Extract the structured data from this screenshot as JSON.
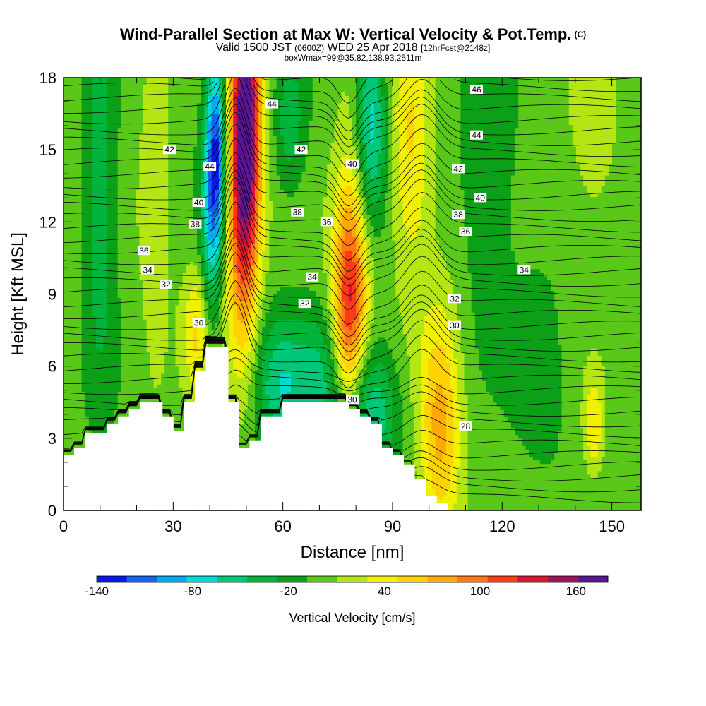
{
  "title": {
    "main": "Wind-Parallel Section at Max W: Vertical Velocity & Pot.Temp.",
    "copyright": "(C)",
    "valid_prefix": "Valid 1500 JST",
    "valid_z": "(0600Z)",
    "valid_date": "WED 25 Apr 2018",
    "forecast": "[12hrFcst@2148z]",
    "box": "boxWmax=99@35.82,138.93,2511m"
  },
  "chart_data": {
    "type": "heatmap",
    "title": "Wind-Parallel Section at Max W: Vertical Velocity & Pot.Temp.",
    "xlabel": "Distance [nm]",
    "ylabel": "Height [Kft MSL]",
    "xlim": [
      0,
      158
    ],
    "ylim": [
      0,
      18
    ],
    "x_ticks": [
      0,
      30,
      60,
      90,
      120,
      150
    ],
    "y_ticks": [
      0,
      3,
      6,
      9,
      12,
      15,
      18
    ],
    "colorbar": {
      "title": "Vertical Velocity [cm/s]",
      "ticks": [
        -140,
        -80,
        -20,
        40,
        100,
        160
      ],
      "levels": [
        -140,
        -120,
        -100,
        -80,
        -60,
        -40,
        -20,
        0,
        20,
        40,
        60,
        80,
        100,
        120,
        140,
        160,
        180
      ],
      "colors": [
        "#0a14f0",
        "#0f64f0",
        "#00aaf0",
        "#00dcd2",
        "#00c878",
        "#00b43c",
        "#0ca018",
        "#5ac818",
        "#b4e614",
        "#f0f000",
        "#ffd200",
        "#ffaa00",
        "#ff7814",
        "#ff3c14",
        "#dc1432",
        "#a0145a",
        "#5a1496"
      ]
    },
    "terrain": [
      [
        0,
        2.3
      ],
      [
        3,
        2.3
      ],
      [
        3,
        2.6
      ],
      [
        6,
        2.6
      ],
      [
        6,
        3.2
      ],
      [
        12,
        3.2
      ],
      [
        12,
        3.6
      ],
      [
        15,
        3.6
      ],
      [
        15,
        3.9
      ],
      [
        18,
        3.9
      ],
      [
        18,
        4.2
      ],
      [
        21,
        4.2
      ],
      [
        21,
        4.5
      ],
      [
        27,
        4.5
      ],
      [
        27,
        3.9
      ],
      [
        30,
        3.9
      ],
      [
        30,
        3.3
      ],
      [
        33,
        3.3
      ],
      [
        33,
        4.5
      ],
      [
        36,
        4.5
      ],
      [
        36,
        5.8
      ],
      [
        39,
        5.8
      ],
      [
        39,
        6.8
      ],
      [
        45,
        6.8
      ],
      [
        45,
        4.5
      ],
      [
        48,
        4.5
      ],
      [
        48,
        2.6
      ],
      [
        51,
        2.6
      ],
      [
        51,
        2.9
      ],
      [
        54,
        2.9
      ],
      [
        54,
        3.9
      ],
      [
        60,
        3.9
      ],
      [
        60,
        4.5
      ],
      [
        78,
        4.5
      ],
      [
        78,
        4.2
      ],
      [
        81,
        4.2
      ],
      [
        81,
        3.9
      ],
      [
        84,
        3.9
      ],
      [
        84,
        3.6
      ],
      [
        87,
        3.6
      ],
      [
        87,
        2.6
      ],
      [
        90,
        2.6
      ],
      [
        90,
        2.3
      ],
      [
        93,
        2.3
      ],
      [
        93,
        1.9
      ],
      [
        96,
        1.9
      ],
      [
        96,
        1.3
      ],
      [
        99,
        1.3
      ],
      [
        99,
        0.6
      ],
      [
        102,
        0.6
      ],
      [
        102,
        0.3
      ],
      [
        105,
        0.3
      ],
      [
        105,
        0.0
      ],
      [
        158,
        0.0
      ]
    ],
    "w_centers": [
      {
        "x": 50,
        "y": 16,
        "sx": 3,
        "sy": 5,
        "v": 170
      },
      {
        "x": 48,
        "y": 13,
        "sx": 3,
        "sy": 5,
        "v": 60
      },
      {
        "x": 42,
        "y": 15,
        "sx": 2,
        "sy": 3,
        "v": -120
      },
      {
        "x": 40,
        "y": 11,
        "sx": 2,
        "sy": 4,
        "v": -60
      },
      {
        "x": 78,
        "y": 8.5,
        "sx": 3,
        "sy": 3,
        "v": 110
      },
      {
        "x": 80,
        "y": 12,
        "sx": 4,
        "sy": 5,
        "v": 40
      },
      {
        "x": 84,
        "y": 16,
        "sx": 3,
        "sy": 3,
        "v": -90
      },
      {
        "x": 84,
        "y": 4.2,
        "sx": 5,
        "sy": 2,
        "v": -70
      },
      {
        "x": 70,
        "y": 5.2,
        "sx": 5,
        "sy": 2,
        "v": -50
      },
      {
        "x": 59,
        "y": 5.2,
        "sx": 5,
        "sy": 2,
        "v": -60
      },
      {
        "x": 103,
        "y": 3.6,
        "sx": 4,
        "sy": 3.5,
        "v": 80
      },
      {
        "x": 95,
        "y": 15,
        "sx": 4,
        "sy": 4,
        "v": 55
      },
      {
        "x": 25,
        "y": 13,
        "sx": 3,
        "sy": 6,
        "v": 30
      },
      {
        "x": 37,
        "y": 7.5,
        "sx": 3,
        "sy": 2,
        "v": 60
      },
      {
        "x": 10,
        "y": 13,
        "sx": 3,
        "sy": 6,
        "v": -40
      },
      {
        "x": 62,
        "y": 16,
        "sx": 3,
        "sy": 2,
        "v": -40
      },
      {
        "x": 116,
        "y": 14,
        "sx": 5,
        "sy": 4,
        "v": -30
      },
      {
        "x": 145,
        "y": 15,
        "sx": 6,
        "sy": 4,
        "v": 20
      },
      {
        "x": 145,
        "y": 3.5,
        "sx": 2,
        "sy": 1.5,
        "v": 50
      },
      {
        "x": 130,
        "y": 6,
        "sx": 6,
        "sy": 3,
        "v": -20
      }
    ],
    "theta_labels": [
      {
        "x": 23,
        "y": 10.0,
        "label": "34"
      },
      {
        "x": 22,
        "y": 10.8,
        "label": "36"
      },
      {
        "x": 28,
        "y": 9.4,
        "label": "32"
      },
      {
        "x": 37,
        "y": 7.8,
        "label": "30"
      },
      {
        "x": 36,
        "y": 11.9,
        "label": "38"
      },
      {
        "x": 37,
        "y": 12.8,
        "label": "40"
      },
      {
        "x": 29,
        "y": 15.0,
        "label": "42"
      },
      {
        "x": 40,
        "y": 14.3,
        "label": "44"
      },
      {
        "x": 57,
        "y": 16.9,
        "label": "44"
      },
      {
        "x": 65,
        "y": 15.0,
        "label": "42"
      },
      {
        "x": 64,
        "y": 12.4,
        "label": "38"
      },
      {
        "x": 68,
        "y": 9.7,
        "label": "34"
      },
      {
        "x": 66,
        "y": 8.6,
        "label": "32"
      },
      {
        "x": 72,
        "y": 12.0,
        "label": "36"
      },
      {
        "x": 79,
        "y": 14.4,
        "label": "40"
      },
      {
        "x": 79,
        "y": 4.6,
        "label": "30"
      },
      {
        "x": 108,
        "y": 14.2,
        "label": "42"
      },
      {
        "x": 108,
        "y": 12.3,
        "label": "38"
      },
      {
        "x": 114,
        "y": 13.0,
        "label": "40"
      },
      {
        "x": 110,
        "y": 11.6,
        "label": "36"
      },
      {
        "x": 126,
        "y": 10.0,
        "label": "34"
      },
      {
        "x": 107,
        "y": 8.8,
        "label": "32"
      },
      {
        "x": 107,
        "y": 7.7,
        "label": "30"
      },
      {
        "x": 110,
        "y": 3.5,
        "label": "28"
      },
      {
        "x": 113,
        "y": 15.6,
        "label": "44"
      },
      {
        "x": 113,
        "y": 17.5,
        "label": "46"
      }
    ]
  }
}
